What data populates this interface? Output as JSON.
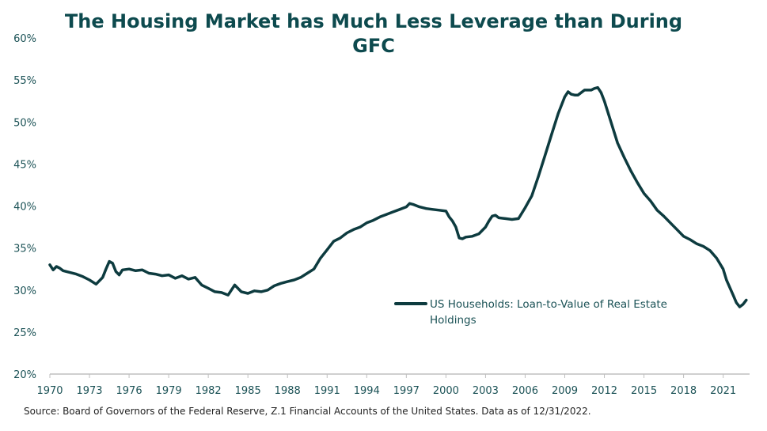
{
  "source_note": "Source: Board of Governors of the Federal Reserve, Z.1 Financial Accounts of the United States. Data as of 12/31/2022.",
  "colors": {
    "line": "#0d3b3f",
    "title": "#0d4a4e",
    "axis": "#bfbfbf"
  },
  "chart_data": {
    "type": "line",
    "title_lines": [
      "The Housing Market has Much Less Leverage than During",
      "GFC"
    ],
    "xlabel": "",
    "ylabel": "",
    "xlim": [
      1970,
      2023
    ],
    "ylim": [
      20,
      60
    ],
    "x_ticks": [
      1970,
      1973,
      1976,
      1979,
      1982,
      1985,
      1988,
      1991,
      1994,
      1997,
      2000,
      2003,
      2006,
      2009,
      2012,
      2015,
      2018,
      2021
    ],
    "y_ticks": [
      20,
      25,
      30,
      35,
      40,
      45,
      50,
      55,
      60
    ],
    "y_tick_format": "percent",
    "grid": false,
    "legend_position": "center-right",
    "series": [
      {
        "name": "US Households: Loan-to-Value of Real Estate Holdings",
        "x": [
          1970.0,
          1970.25,
          1970.5,
          1970.75,
          1971.0,
          1971.5,
          1972.0,
          1972.5,
          1973.0,
          1973.5,
          1974.0,
          1974.25,
          1974.5,
          1974.75,
          1975.0,
          1975.25,
          1975.5,
          1976.0,
          1976.5,
          1977.0,
          1977.5,
          1978.0,
          1978.5,
          1979.0,
          1979.5,
          1980.0,
          1980.5,
          1981.0,
          1981.5,
          1982.0,
          1982.5,
          1983.0,
          1983.5,
          1984.0,
          1984.5,
          1985.0,
          1985.5,
          1986.0,
          1986.5,
          1987.0,
          1987.5,
          1988.0,
          1988.5,
          1989.0,
          1989.5,
          1990.0,
          1990.5,
          1991.0,
          1991.5,
          1992.0,
          1992.5,
          1993.0,
          1993.5,
          1994.0,
          1994.5,
          1995.0,
          1995.5,
          1996.0,
          1996.5,
          1997.0,
          1997.25,
          1997.5,
          1998.0,
          1998.5,
          1999.0,
          1999.5,
          2000.0,
          2000.25,
          2000.5,
          2000.75,
          2001.0,
          2001.25,
          2001.5,
          2002.0,
          2002.5,
          2003.0,
          2003.25,
          2003.5,
          2003.75,
          2004.0,
          2004.5,
          2005.0,
          2005.5,
          2006.0,
          2006.25,
          2006.5,
          2007.0,
          2007.5,
          2008.0,
          2008.5,
          2009.0,
          2009.25,
          2009.5,
          2009.75,
          2010.0,
          2010.5,
          2011.0,
          2011.25,
          2011.5,
          2011.75,
          2012.0,
          2012.5,
          2013.0,
          2013.5,
          2014.0,
          2014.5,
          2015.0,
          2015.5,
          2016.0,
          2016.5,
          2017.0,
          2017.5,
          2018.0,
          2018.5,
          2019.0,
          2019.5,
          2020.0,
          2020.5,
          2021.0,
          2021.25,
          2021.5,
          2021.75,
          2022.0,
          2022.25,
          2022.5,
          2022.75
        ],
        "y": [
          33.0,
          32.4,
          32.8,
          32.6,
          32.3,
          32.1,
          31.9,
          31.6,
          31.2,
          30.7,
          31.5,
          32.5,
          33.4,
          33.2,
          32.2,
          31.8,
          32.4,
          32.5,
          32.3,
          32.4,
          32.0,
          31.9,
          31.7,
          31.8,
          31.4,
          31.7,
          31.3,
          31.5,
          30.6,
          30.2,
          29.8,
          29.7,
          29.4,
          30.6,
          29.8,
          29.6,
          29.9,
          29.8,
          30.0,
          30.5,
          30.8,
          31.0,
          31.2,
          31.5,
          32.0,
          32.5,
          33.8,
          34.8,
          35.8,
          36.2,
          36.8,
          37.2,
          37.5,
          38.0,
          38.3,
          38.7,
          39.0,
          39.3,
          39.6,
          39.9,
          40.3,
          40.2,
          39.9,
          39.7,
          39.6,
          39.5,
          39.4,
          38.7,
          38.2,
          37.5,
          36.2,
          36.1,
          36.3,
          36.4,
          36.7,
          37.5,
          38.2,
          38.8,
          38.9,
          38.6,
          38.5,
          38.4,
          38.5,
          39.8,
          40.5,
          41.2,
          43.5,
          46.0,
          48.5,
          51.0,
          53.0,
          53.6,
          53.3,
          53.2,
          53.2,
          53.8,
          53.8,
          54.0,
          54.1,
          53.5,
          52.5,
          50.0,
          47.5,
          45.8,
          44.2,
          42.8,
          41.5,
          40.6,
          39.5,
          38.8,
          38.0,
          37.2,
          36.4,
          36.0,
          35.5,
          35.2,
          34.7,
          33.8,
          32.5,
          31.2,
          30.3,
          29.4,
          28.5,
          28.0,
          28.3,
          28.8
        ]
      }
    ]
  }
}
